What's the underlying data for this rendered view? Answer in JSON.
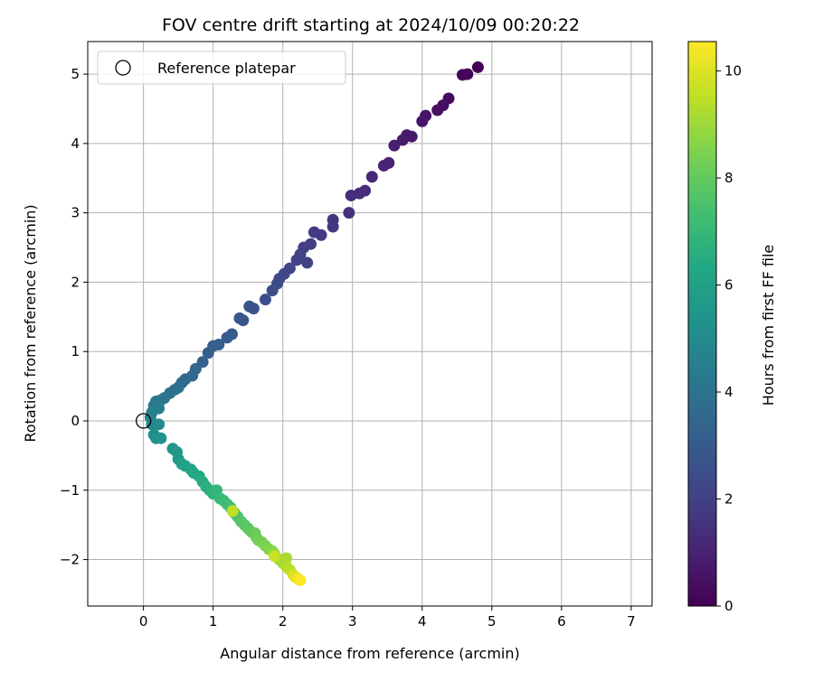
{
  "chart_data": {
    "type": "scatter",
    "title": "FOV centre drift starting at 2024/10/09 00:20:22",
    "xlabel": "Angular distance from reference (arcmin)",
    "ylabel": "Rotation from reference (arcmin)",
    "xlim": [
      -0.8,
      7.3
    ],
    "ylim": [
      -2.67,
      5.47
    ],
    "xticks": [
      "0",
      "1",
      "2",
      "3",
      "4",
      "5",
      "6",
      "7"
    ],
    "yticks": [
      "−2",
      "−1",
      "0",
      "1",
      "2",
      "3",
      "4",
      "5"
    ],
    "grid": true,
    "legend": {
      "placement": "top-left",
      "entries": [
        "Reference platepar"
      ]
    },
    "reference_point": {
      "x": 0,
      "y": 0,
      "label": "Reference platepar"
    },
    "colorbar": {
      "label": "Hours from first FF file",
      "range": [
        0,
        10.55
      ],
      "ticks": [
        "0",
        "2",
        "4",
        "6",
        "8",
        "10"
      ],
      "colormap": "viridis"
    },
    "series": [
      {
        "name": "FOV centre",
        "points": [
          {
            "x": 4.8,
            "y": 5.1,
            "c": 0.0
          },
          {
            "x": 4.65,
            "y": 5.0,
            "c": 0.1
          },
          {
            "x": 4.58,
            "y": 4.99,
            "c": 0.15
          },
          {
            "x": 4.38,
            "y": 4.65,
            "c": 0.3
          },
          {
            "x": 4.3,
            "y": 4.55,
            "c": 0.4
          },
          {
            "x": 4.22,
            "y": 4.48,
            "c": 0.45
          },
          {
            "x": 4.05,
            "y": 4.4,
            "c": 0.55
          },
          {
            "x": 4.0,
            "y": 4.32,
            "c": 0.6
          },
          {
            "x": 3.85,
            "y": 4.1,
            "c": 0.7
          },
          {
            "x": 3.78,
            "y": 4.12,
            "c": 0.75
          },
          {
            "x": 3.72,
            "y": 4.05,
            "c": 0.8
          },
          {
            "x": 3.6,
            "y": 3.97,
            "c": 0.9
          },
          {
            "x": 3.52,
            "y": 3.72,
            "c": 1.0
          },
          {
            "x": 3.45,
            "y": 3.68,
            "c": 1.1
          },
          {
            "x": 3.28,
            "y": 3.52,
            "c": 1.2
          },
          {
            "x": 3.18,
            "y": 3.32,
            "c": 1.3
          },
          {
            "x": 3.1,
            "y": 3.28,
            "c": 1.4
          },
          {
            "x": 2.98,
            "y": 3.25,
            "c": 1.45
          },
          {
            "x": 2.95,
            "y": 3.0,
            "c": 1.55
          },
          {
            "x": 2.72,
            "y": 2.9,
            "c": 1.65
          },
          {
            "x": 2.72,
            "y": 2.8,
            "c": 1.7
          },
          {
            "x": 2.55,
            "y": 2.68,
            "c": 1.8
          },
          {
            "x": 2.45,
            "y": 2.72,
            "c": 1.85
          },
          {
            "x": 2.4,
            "y": 2.55,
            "c": 1.9
          },
          {
            "x": 2.3,
            "y": 2.5,
            "c": 1.95
          },
          {
            "x": 2.25,
            "y": 2.4,
            "c": 2.0
          },
          {
            "x": 2.35,
            "y": 2.28,
            "c": 2.05
          },
          {
            "x": 2.2,
            "y": 2.32,
            "c": 2.1
          },
          {
            "x": 2.1,
            "y": 2.2,
            "c": 2.2
          },
          {
            "x": 2.02,
            "y": 2.12,
            "c": 2.25
          },
          {
            "x": 1.95,
            "y": 2.05,
            "c": 2.3
          },
          {
            "x": 1.92,
            "y": 1.98,
            "c": 2.35
          },
          {
            "x": 1.85,
            "y": 1.88,
            "c": 2.45
          },
          {
            "x": 1.75,
            "y": 1.75,
            "c": 2.55
          },
          {
            "x": 1.58,
            "y": 1.62,
            "c": 2.65
          },
          {
            "x": 1.52,
            "y": 1.65,
            "c": 2.7
          },
          {
            "x": 1.43,
            "y": 1.45,
            "c": 2.8
          },
          {
            "x": 1.38,
            "y": 1.48,
            "c": 2.85
          },
          {
            "x": 1.27,
            "y": 1.25,
            "c": 2.95
          },
          {
            "x": 1.2,
            "y": 1.2,
            "c": 3.0
          },
          {
            "x": 1.08,
            "y": 1.1,
            "c": 3.1
          },
          {
            "x": 1.0,
            "y": 1.08,
            "c": 3.15
          },
          {
            "x": 0.93,
            "y": 0.98,
            "c": 3.2
          },
          {
            "x": 0.85,
            "y": 0.85,
            "c": 3.3
          },
          {
            "x": 0.75,
            "y": 0.75,
            "c": 3.4
          },
          {
            "x": 0.7,
            "y": 0.65,
            "c": 3.5
          },
          {
            "x": 0.6,
            "y": 0.6,
            "c": 3.6
          },
          {
            "x": 0.55,
            "y": 0.55,
            "c": 3.65
          },
          {
            "x": 0.5,
            "y": 0.48,
            "c": 3.75
          },
          {
            "x": 0.45,
            "y": 0.45,
            "c": 3.8
          },
          {
            "x": 0.38,
            "y": 0.4,
            "c": 3.9
          },
          {
            "x": 0.3,
            "y": 0.33,
            "c": 4.0
          },
          {
            "x": 0.25,
            "y": 0.3,
            "c": 4.1
          },
          {
            "x": 0.18,
            "y": 0.28,
            "c": 4.2
          },
          {
            "x": 0.15,
            "y": 0.22,
            "c": 4.3
          },
          {
            "x": 0.22,
            "y": 0.18,
            "c": 4.4
          },
          {
            "x": 0.12,
            "y": 0.12,
            "c": 4.55
          },
          {
            "x": 0.1,
            "y": 0.05,
            "c": 4.7
          },
          {
            "x": 0.12,
            "y": -0.05,
            "c": 4.85
          },
          {
            "x": 0.22,
            "y": -0.05,
            "c": 5.0
          },
          {
            "x": 0.15,
            "y": -0.2,
            "c": 5.1
          },
          {
            "x": 0.18,
            "y": -0.25,
            "c": 5.2
          },
          {
            "x": 0.25,
            "y": -0.25,
            "c": 5.3
          },
          {
            "x": 0.42,
            "y": -0.4,
            "c": 5.45
          },
          {
            "x": 0.48,
            "y": -0.45,
            "c": 5.6
          },
          {
            "x": 0.5,
            "y": -0.55,
            "c": 5.75
          },
          {
            "x": 0.55,
            "y": -0.62,
            "c": 5.9
          },
          {
            "x": 0.6,
            "y": -0.65,
            "c": 6.0
          },
          {
            "x": 0.68,
            "y": -0.7,
            "c": 6.15
          },
          {
            "x": 0.72,
            "y": -0.75,
            "c": 6.25
          },
          {
            "x": 0.8,
            "y": -0.8,
            "c": 6.35
          },
          {
            "x": 0.85,
            "y": -0.88,
            "c": 6.5
          },
          {
            "x": 0.9,
            "y": -0.95,
            "c": 6.6
          },
          {
            "x": 0.95,
            "y": -1.0,
            "c": 6.7
          },
          {
            "x": 1.0,
            "y": -1.05,
            "c": 6.8
          },
          {
            "x": 1.05,
            "y": -1.0,
            "c": 6.9
          },
          {
            "x": 1.1,
            "y": -1.12,
            "c": 7.0
          },
          {
            "x": 1.15,
            "y": -1.15,
            "c": 7.1
          },
          {
            "x": 1.2,
            "y": -1.2,
            "c": 7.2
          },
          {
            "x": 1.25,
            "y": -1.25,
            "c": 7.3
          },
          {
            "x": 1.3,
            "y": -1.32,
            "c": 7.4
          },
          {
            "x": 1.35,
            "y": -1.38,
            "c": 7.55
          },
          {
            "x": 1.4,
            "y": -1.45,
            "c": 7.65
          },
          {
            "x": 1.45,
            "y": -1.5,
            "c": 7.75
          },
          {
            "x": 1.5,
            "y": -1.55,
            "c": 7.85
          },
          {
            "x": 1.55,
            "y": -1.6,
            "c": 7.95
          },
          {
            "x": 1.6,
            "y": -1.62,
            "c": 8.05
          },
          {
            "x": 1.62,
            "y": -1.68,
            "c": 8.15
          },
          {
            "x": 1.65,
            "y": -1.72,
            "c": 8.25
          },
          {
            "x": 1.7,
            "y": -1.75,
            "c": 8.35
          },
          {
            "x": 1.75,
            "y": -1.8,
            "c": 8.45
          },
          {
            "x": 1.8,
            "y": -1.85,
            "c": 8.55
          },
          {
            "x": 1.85,
            "y": -1.88,
            "c": 8.65
          },
          {
            "x": 1.88,
            "y": -1.92,
            "c": 8.8
          },
          {
            "x": 1.95,
            "y": -2.0,
            "c": 8.95
          },
          {
            "x": 2.0,
            "y": -2.05,
            "c": 9.1
          },
          {
            "x": 2.05,
            "y": -1.98,
            "c": 9.2
          },
          {
            "x": 2.05,
            "y": -2.1,
            "c": 9.3
          },
          {
            "x": 2.1,
            "y": -2.15,
            "c": 9.45
          },
          {
            "x": 1.28,
            "y": -1.3,
            "c": 9.55
          },
          {
            "x": 1.88,
            "y": -1.95,
            "c": 9.7
          },
          {
            "x": 2.15,
            "y": -2.22,
            "c": 9.85
          },
          {
            "x": 2.18,
            "y": -2.25,
            "c": 10.05
          },
          {
            "x": 2.22,
            "y": -2.28,
            "c": 10.3
          },
          {
            "x": 2.25,
            "y": -2.3,
            "c": 10.5
          }
        ]
      }
    ]
  }
}
